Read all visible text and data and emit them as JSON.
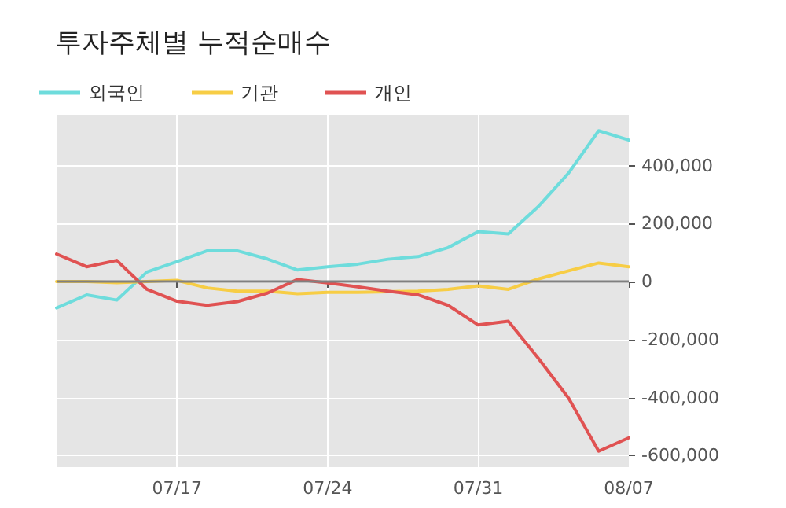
{
  "chart_data": {
    "type": "line",
    "title": "투자주체별 누적순매수",
    "categories": [
      null,
      null,
      null,
      null,
      "07/17",
      null,
      null,
      null,
      null,
      "07/24",
      null,
      null,
      null,
      null,
      "07/31",
      null,
      null,
      null,
      null,
      "08/07"
    ],
    "series": [
      {
        "name": "외국인",
        "color": "#6edcdc",
        "values": [
          -91000,
          -46000,
          -64000,
          33000,
          69000,
          106000,
          106000,
          78000,
          40000,
          51000,
          60000,
          77000,
          86000,
          117000,
          172000,
          164000,
          259000,
          374000,
          520000,
          488000
        ]
      },
      {
        "name": "기관",
        "color": "#f7cd45",
        "values": [
          0,
          0,
          -4000,
          0,
          4000,
          -22000,
          -33000,
          -33000,
          -42000,
          -37000,
          -37000,
          -35000,
          -33000,
          -27000,
          -15000,
          -27000,
          9000,
          37000,
          64000,
          51000
        ]
      },
      {
        "name": "개인",
        "color": "#e05252",
        "values": [
          95000,
          51000,
          73000,
          -27000,
          -68000,
          -82000,
          -69000,
          -40000,
          7000,
          -5000,
          -18000,
          -33000,
          -46000,
          -82000,
          -150000,
          -137000,
          -265000,
          -402000,
          -585000,
          -539000
        ]
      }
    ],
    "ylim": [
      -640000,
      575000
    ],
    "yticks": [
      {
        "value": -600000,
        "label": "-600,000"
      },
      {
        "value": -400000,
        "label": "-400,000"
      },
      {
        "value": -200000,
        "label": "-200,000"
      },
      0,
      {
        "value": 200000,
        "label": "200,000"
      },
      {
        "value": 400000,
        "label": "400,000"
      }
    ],
    "grid": true,
    "legend": "top left",
    "marker": "none",
    "line_style": "solid",
    "ref_lines": [
      {
        "axis": "y",
        "value": 0,
        "color": "#808080"
      }
    ]
  }
}
